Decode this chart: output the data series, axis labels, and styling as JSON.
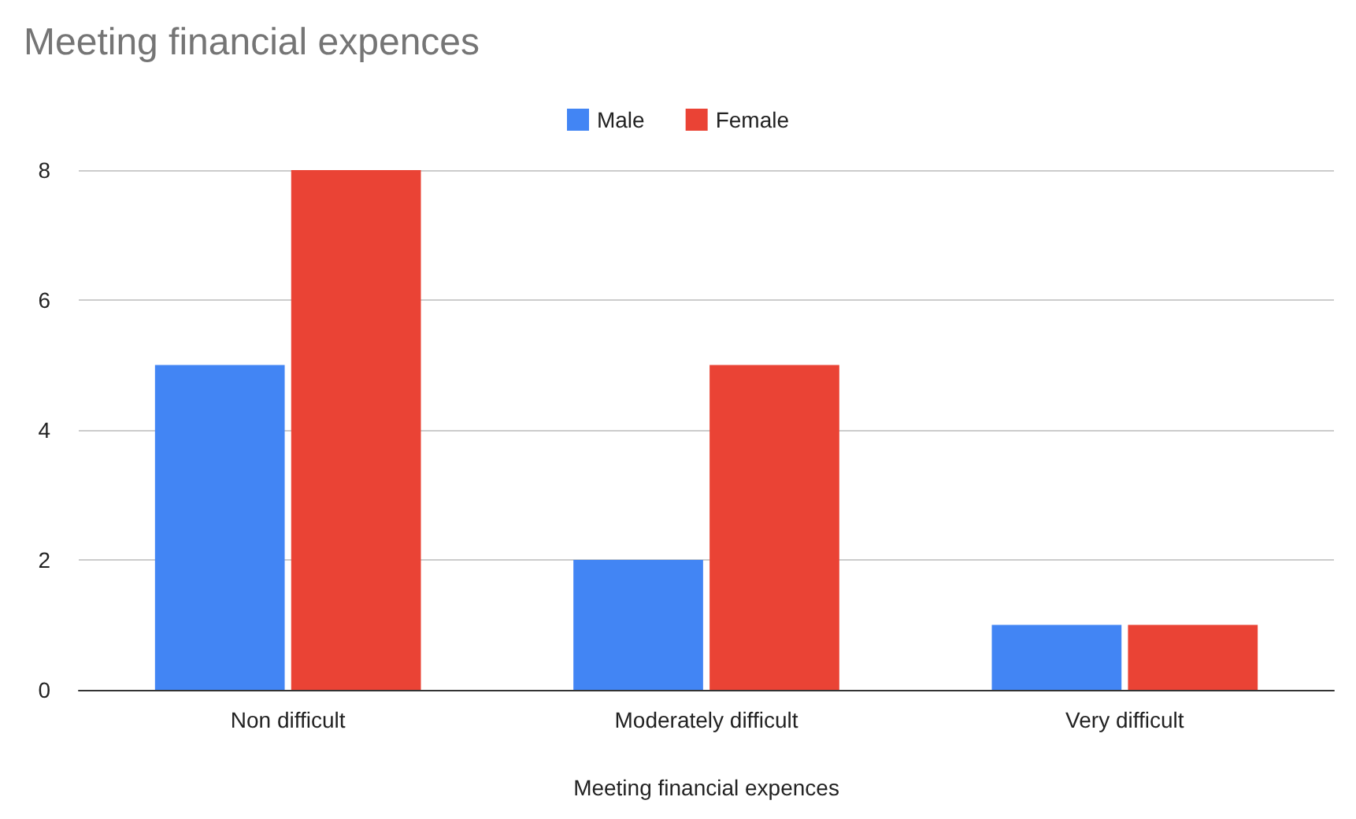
{
  "chart_data": {
    "type": "bar",
    "title": "Meeting financial expences",
    "xlabel": "Meeting financial expences",
    "categories": [
      "Non difficult",
      "Moderately difficult",
      "Very difficult"
    ],
    "series": [
      {
        "name": "Male",
        "color": "#4285f4",
        "values": [
          5,
          2,
          1
        ]
      },
      {
        "name": "Female",
        "color": "#ea4335",
        "values": [
          8,
          5,
          1
        ]
      }
    ],
    "ylim": [
      0,
      8
    ],
    "yticks": [
      0,
      2,
      4,
      6,
      8
    ],
    "grid": "y",
    "legend": "top"
  }
}
